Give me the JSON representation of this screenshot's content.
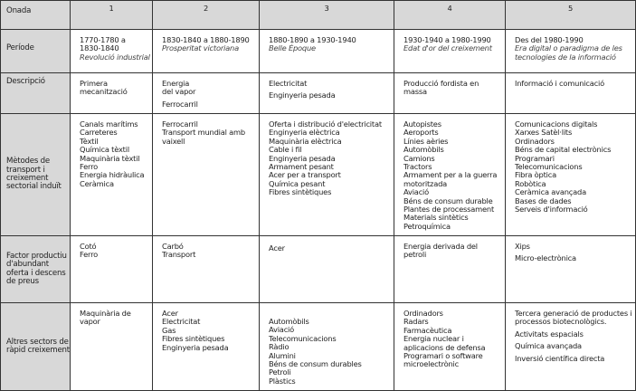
{
  "header": {
    "label": "Onada",
    "waves": [
      "1",
      "2",
      "3",
      "4",
      "5"
    ]
  },
  "rows": [
    {
      "label": "Període",
      "cells": [
        [
          {
            "t": "1770-1780  a"
          },
          {
            "t": "1830-1840"
          },
          {
            "t": "Revolució industrial",
            "i": true
          }
        ],
        [
          {
            "t": "1830-1840 a 1880-1890"
          },
          {
            "t": "Prosperitat victoriana",
            "i": true
          }
        ],
        [
          {
            "t": "1880-1890 a 1930-1940"
          },
          {
            "t": "Belle Époque",
            "i": true
          }
        ],
        [
          {
            "t": "1930-1940 a 1980-1990"
          },
          {
            "t": "Edat d'or del creixement",
            "i": true
          }
        ],
        [
          {
            "t": "Des del 1980-1990"
          },
          {
            "t": "Era digital o paradigma de les",
            "i": true
          },
          {
            "t": "tecnologies de la informació",
            "i": true
          }
        ]
      ]
    },
    {
      "label": "Descripció",
      "cells": [
        [
          {
            "t": "Primera"
          },
          {
            "t": "mecanització"
          }
        ],
        [
          {
            "t": "Energia"
          },
          {
            "t": "del vapor"
          },
          {
            "t": "Ferrocarril",
            "g": true
          }
        ],
        [
          {
            "t": "Electricitat"
          },
          {
            "t": "Enginyeria pesada",
            "g": true
          }
        ],
        [
          {
            "t": "Producció fordista en"
          },
          {
            "t": "massa"
          }
        ],
        [
          {
            "t": "Informació i comunicació"
          }
        ]
      ]
    },
    {
      "label": "Mètodes de transport i creixement sectorial induït",
      "cells": [
        [
          {
            "t": "Canals marítims"
          },
          {
            "t": "Carreteres"
          },
          {
            "t": "Tèxtil"
          },
          {
            "t": "Química tèxtil"
          },
          {
            "t": "Maquinària tèxtil"
          },
          {
            "t": "Ferro"
          },
          {
            "t": "Energia hidràulica"
          },
          {
            "t": "Ceràmica"
          }
        ],
        [
          {
            "t": "Ferrocarril"
          },
          {
            "t": "Transport mundial amb"
          },
          {
            "t": "vaixell"
          }
        ],
        [
          {
            "t": "Oferta i distribució d'electricitat"
          },
          {
            "t": "Enginyeria elèctrica"
          },
          {
            "t": "Maquinària elèctrica"
          },
          {
            "t": "Cable i fil"
          },
          {
            "t": "Enginyeria pesada"
          },
          {
            "t": "Armament pesant"
          },
          {
            "t": "Acer per a transport"
          },
          {
            "t": "Química pesant"
          },
          {
            "t": "Fibres sintètiques"
          }
        ],
        [
          {
            "t": "Autopistes"
          },
          {
            "t": "Aeroports"
          },
          {
            "t": "Línies aèries"
          },
          {
            "t": "Automòbils"
          },
          {
            "t": "Camions"
          },
          {
            "t": "Tractors"
          },
          {
            "t": "Armament per a la guerra"
          },
          {
            "t": "motoritzada"
          },
          {
            "t": "Aviació"
          },
          {
            "t": "Béns de consum durable"
          },
          {
            "t": "Plantes de processament"
          },
          {
            "t": "Materials sintètics"
          },
          {
            "t": "Petroquímica"
          }
        ],
        [
          {
            "t": "Comunicacions digitals"
          },
          {
            "t": "Xarxes Satèl·lits"
          },
          {
            "t": "Ordinadors"
          },
          {
            "t": "Béns de capital electrònics"
          },
          {
            "t": "Programari"
          },
          {
            "t": "Telecomunicacions"
          },
          {
            "t": "Fibra òptica"
          },
          {
            "t": "Robòtica"
          },
          {
            "t": "Ceràmica avançada"
          },
          {
            "t": "Bases de dades"
          },
          {
            "t": "Serveis d'informació"
          }
        ]
      ]
    },
    {
      "label": "Factor productiu d'abundant oferta i descens de preus",
      "cells": [
        [
          {
            "t": "Cotó"
          },
          {
            "t": "Ferro"
          }
        ],
        [
          {
            "t": "Carbó"
          },
          {
            "t": "Transport"
          }
        ],
        [
          {
            "t": "Acer"
          }
        ],
        [
          {
            "t": "Energia derivada del"
          },
          {
            "t": "petroli"
          }
        ],
        [
          {
            "t": "Xips"
          },
          {
            "t": "Micro-electrònica",
            "g": true
          }
        ]
      ]
    },
    {
      "label": "Altres sectors de ràpid creixement",
      "cells": [
        [
          {
            "t": "Maquinària de"
          },
          {
            "t": "vapor"
          }
        ],
        [
          {
            "t": "Acer"
          },
          {
            "t": "Electricitat"
          },
          {
            "t": "Gas"
          },
          {
            "t": "Fibres sintètiques"
          },
          {
            "t": "Enginyeria pesada"
          }
        ],
        [
          {
            "t": "Automòbils"
          },
          {
            "t": "Aviació"
          },
          {
            "t": "Telecomunicacions"
          },
          {
            "t": "Ràdio"
          },
          {
            "t": "Alumini"
          },
          {
            "t": "Béns de consum durables"
          },
          {
            "t": "Petroli"
          },
          {
            "t": "Plàstics"
          }
        ],
        [
          {
            "t": "Ordinadors"
          },
          {
            "t": "Radars"
          },
          {
            "t": "Farmacèutica"
          },
          {
            "t": "Energia nuclear i"
          },
          {
            "t": "aplicacions de defensa"
          },
          {
            "t": "Programari o software"
          },
          {
            "t": "microelectrònic"
          }
        ],
        [
          {
            "t": "Tercera generació de productes i"
          },
          {
            "t": "processos biotecnològics."
          },
          {
            "t": "Activitats espacials",
            "g": true
          },
          {
            "t": "Química avançada",
            "g": true
          },
          {
            "t": "Inversió científica directa",
            "g": true
          }
        ]
      ]
    }
  ],
  "colors": {
    "header_bg": "#d8d8d8",
    "border": "#333333"
  }
}
